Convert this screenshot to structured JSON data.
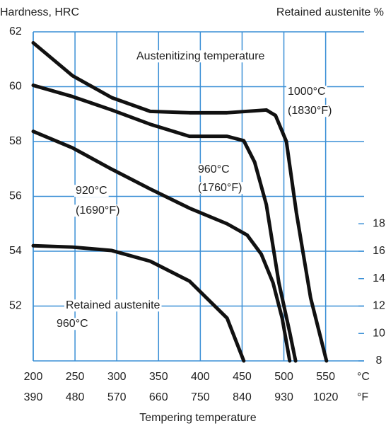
{
  "chart_data": {
    "type": "line",
    "y_label": "Hardness, HRC",
    "y2_label": "Retained austenite %",
    "x_label": "Tempering temperature",
    "x_unit": "°C",
    "x2_unit": "°F",
    "annotation": "Austenitizing temperature",
    "xlim": [
      200,
      596
    ],
    "xticks": [
      200,
      250,
      300,
      350,
      400,
      450,
      500,
      550
    ],
    "x2ticks": [
      390,
      480,
      570,
      660,
      750,
      840,
      930,
      1020
    ],
    "ylim": [
      50,
      62
    ],
    "yticks": [
      52,
      54,
      56,
      58,
      60,
      62
    ],
    "y2lim": [
      8,
      32
    ],
    "y2ticks": [
      8,
      10,
      12,
      14,
      16,
      18
    ],
    "grid": true,
    "series": [
      {
        "name": "1000°C",
        "note": "(1830°F)",
        "color": "#111111",
        "x": [
          200,
          247,
          294,
          340,
          387,
          432,
          479,
          490,
          503,
          515,
          532,
          551
        ],
        "values": [
          61.6,
          60.4,
          59.6,
          59.1,
          59.05,
          59.05,
          59.15,
          58.95,
          58.0,
          55.4,
          52.3,
          50
        ]
      },
      {
        "name": "960°C",
        "note": "(1760°F)",
        "color": "#111111",
        "x": [
          200,
          247,
          294,
          340,
          387,
          432,
          452,
          465,
          479,
          494,
          507,
          514
        ],
        "values": [
          60.05,
          59.64,
          59.15,
          58.63,
          58.19,
          58.19,
          58.03,
          57.25,
          55.7,
          52.85,
          51.04,
          50
        ]
      },
      {
        "name": "920°C",
        "note": "(1690°F)",
        "color": "#111111",
        "x": [
          200,
          247,
          294,
          340,
          387,
          432,
          456,
          473,
          487,
          498,
          507
        ],
        "values": [
          58.37,
          57.77,
          56.99,
          56.27,
          55.57,
          55.0,
          54.59,
          53.89,
          52.85,
          51.55,
          50
        ]
      },
      {
        "name": "Retained austenite",
        "note": "960°C",
        "color": "#111111",
        "axis": "y2",
        "x": [
          200,
          247,
          294,
          340,
          387,
          432,
          452
        ],
        "values": [
          16.4,
          16.3,
          16.05,
          15.27,
          13.82,
          11.12,
          8
        ]
      }
    ]
  }
}
